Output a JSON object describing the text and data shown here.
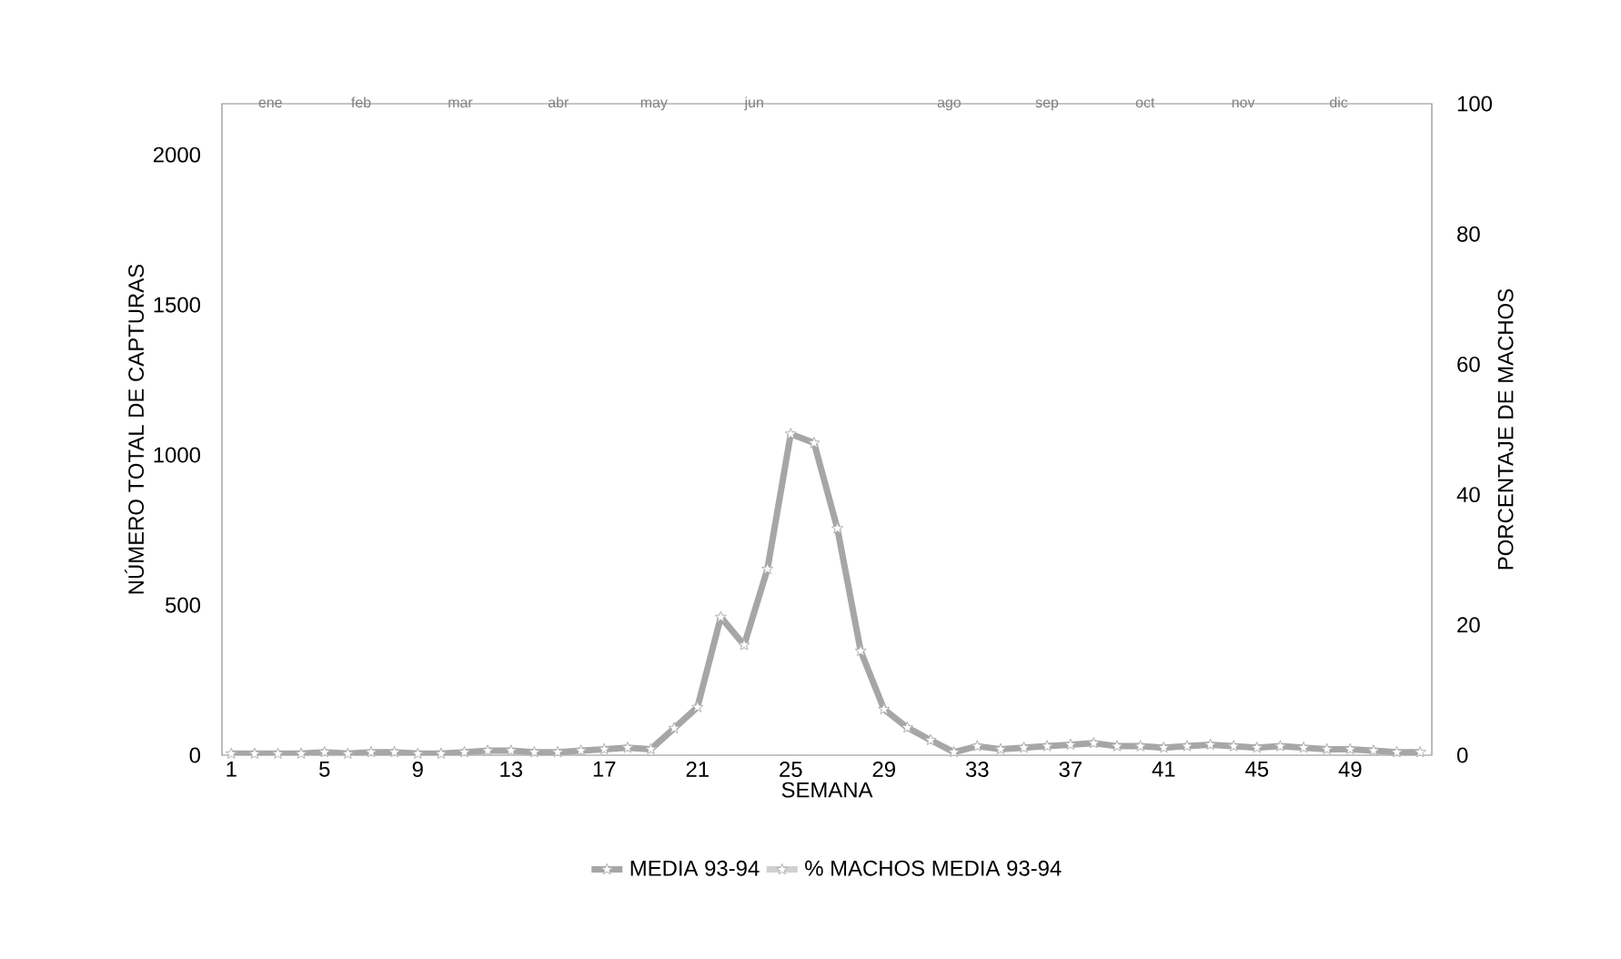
{
  "chart_data": {
    "type": "line",
    "xlabel": "SEMANA",
    "ylabel": "NÚMERO TOTAL DE CAPTURAS",
    "y2label": "PORCENTAJE DE MACHOS",
    "x": [
      1,
      2,
      3,
      4,
      5,
      6,
      7,
      8,
      9,
      10,
      11,
      12,
      13,
      14,
      15,
      16,
      17,
      18,
      19,
      20,
      21,
      22,
      23,
      24,
      25,
      26,
      27,
      28,
      29,
      30,
      31,
      32,
      33,
      34,
      35,
      36,
      37,
      38,
      39,
      40,
      41,
      42,
      43,
      44,
      45,
      46,
      47,
      48,
      49,
      50,
      51,
      52
    ],
    "xlim": [
      0.6,
      52.5
    ],
    "xticks": [
      1,
      5,
      9,
      13,
      17,
      21,
      25,
      29,
      33,
      37,
      41,
      45,
      49
    ],
    "annotations": [
      "ene",
      "feb",
      "mar",
      "abr",
      "may",
      "jun",
      "ago",
      "sep",
      "oct",
      "nov",
      "dic"
    ],
    "ylim": [
      0,
      2170
    ],
    "yticks": [
      0,
      500,
      1000,
      1500,
      2000
    ],
    "y2lim": [
      0,
      100
    ],
    "y2ticks": [
      0,
      20,
      40,
      60,
      80,
      100
    ],
    "series": [
      {
        "name": "MEDIA 93-94",
        "color": "#a6a6a6",
        "values": [
          5,
          5,
          5,
          5,
          10,
          5,
          10,
          10,
          5,
          5,
          10,
          15,
          15,
          10,
          10,
          15,
          20,
          25,
          20,
          90,
          160,
          460,
          367,
          620,
          1070,
          1040,
          755,
          347,
          153,
          92,
          50,
          10,
          30,
          20,
          25,
          30,
          35,
          40,
          30,
          30,
          25,
          30,
          35,
          30,
          25,
          30,
          25,
          20,
          20,
          15,
          10,
          10
        ]
      },
      {
        "name": "% MACHOS MEDIA 93-94",
        "color": "#d0d0d0",
        "axis": "y2",
        "values": [
          null,
          null,
          null,
          null,
          null,
          null,
          null,
          null,
          null,
          null,
          null,
          null,
          null,
          null,
          null,
          null,
          null,
          null,
          null,
          null,
          null,
          null,
          null,
          null,
          null,
          null,
          null,
          null,
          null,
          null,
          null,
          null,
          null,
          null,
          null,
          null,
          null,
          null,
          null,
          null,
          null,
          null,
          null,
          null,
          null,
          null,
          null,
          null,
          null,
          null,
          null,
          null
        ]
      }
    ],
    "marker": "star",
    "line_style": "solid",
    "legend": "bottom",
    "grid": false
  }
}
